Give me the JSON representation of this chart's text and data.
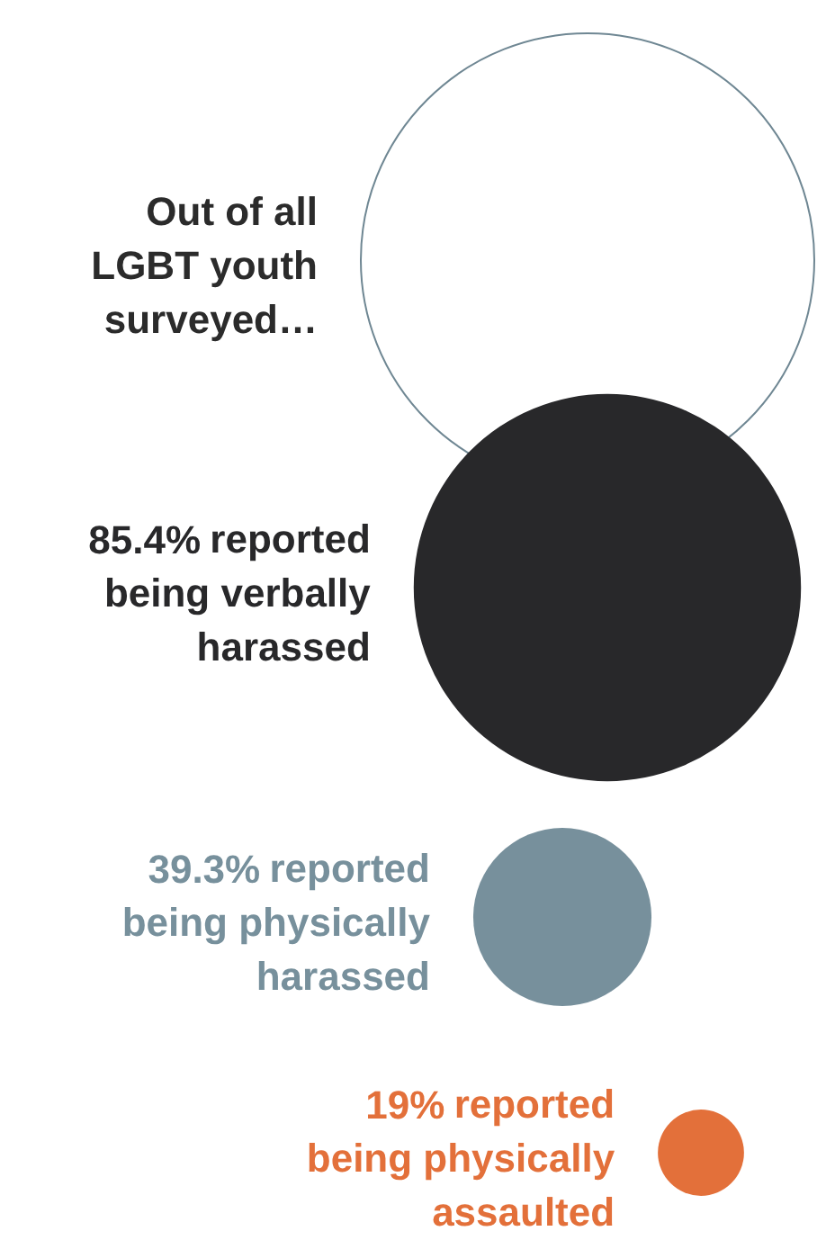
{
  "chart_data": {
    "type": "other",
    "categories": [
      "Out of all LGBT youth surveyed…",
      "reported being verbally harassed",
      "reported being physically harassed",
      "reported being physically assaulted"
    ],
    "values": [
      null,
      85.4,
      39.3,
      19
    ],
    "value_labels": [
      null,
      "85.4%",
      "39.3%",
      "19%"
    ],
    "colors": [
      "#6f8793",
      "#28282a",
      "#77909c",
      "#e3703a"
    ]
  }
}
